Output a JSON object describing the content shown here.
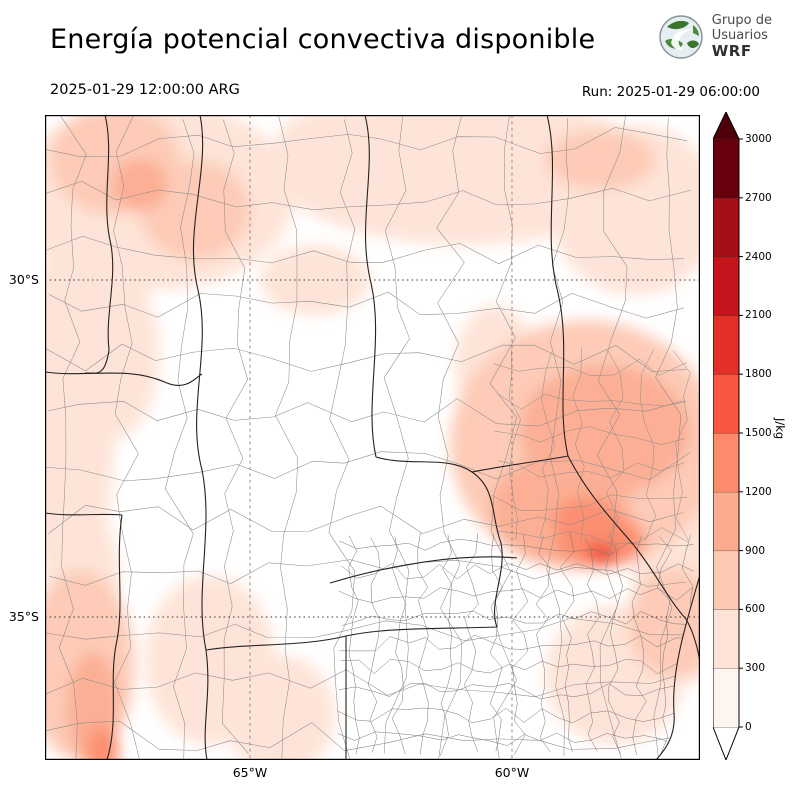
{
  "header": {
    "title": "Energía potencial convectiva disponible",
    "logo": {
      "line1": "Grupo de",
      "line2": "Usuarios",
      "line3": "WRF"
    }
  },
  "subheader": {
    "valid_time": "2025-01-29 12:00:00 ARG",
    "run_label": "Run: 2025-01-29 06:00:00"
  },
  "map": {
    "y_ticks": [
      "30°S",
      "35°S"
    ],
    "x_ticks": [
      "65°W",
      "60°W"
    ]
  },
  "colorbar": {
    "label": "J/kg",
    "ticks": [
      0,
      300,
      600,
      900,
      1200,
      1500,
      1800,
      2100,
      2400,
      2700,
      3000
    ],
    "segment_colors": [
      "#fff5f0",
      "#fee3d6",
      "#fdc9b4",
      "#fcab8f",
      "#fc8a6b",
      "#f6573e",
      "#e32f27",
      "#c4161c",
      "#a50f15",
      "#67000d"
    ],
    "over_color": "#50000a",
    "under_color": "#ffffff"
  },
  "chart_data": {
    "type": "heatmap",
    "title": "Energía potencial convectiva disponible",
    "valid_time": "2025-01-29 12:00:00 ARG",
    "model_run": "2025-01-29 06:00:00",
    "units": "J/kg",
    "colorbar_ticks": [
      0,
      300,
      600,
      900,
      1200,
      1500,
      1800,
      2100,
      2400,
      2700,
      3000
    ],
    "colorbar_range": [
      0,
      3000
    ],
    "lat_tick_labels": [
      "30°S",
      "35°S"
    ],
    "lon_tick_labels": [
      "65°W",
      "60°W"
    ],
    "legend_position": "right"
  }
}
